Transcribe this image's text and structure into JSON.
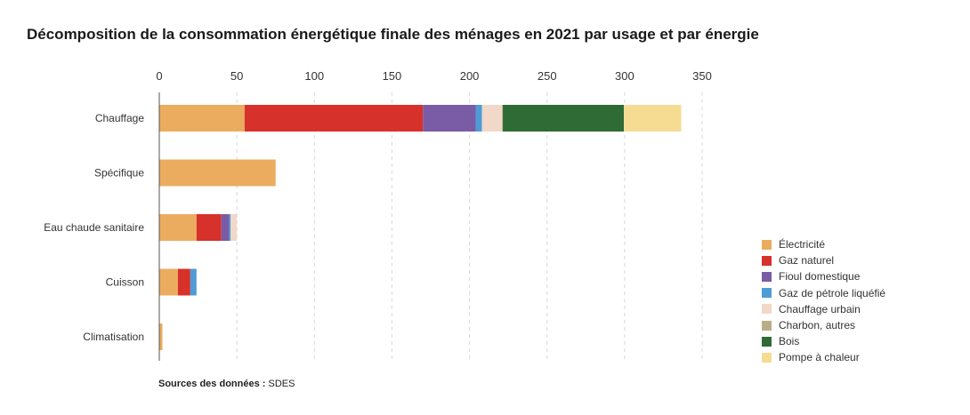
{
  "chart_data": {
    "type": "bar",
    "orientation": "horizontal",
    "stacked": true,
    "title": "Décomposition de la consommation énergétique finale des ménages en 2021 par usage et par énergie",
    "categories": [
      "Chauffage",
      "Spécifique",
      "Eau chaude sanitaire",
      "Cuisson",
      "Climatisation"
    ],
    "xlim": [
      0,
      350
    ],
    "xticks": [
      0,
      50,
      100,
      150,
      200,
      250,
      300,
      350
    ],
    "grid": "vertical dashed",
    "legend_position": "bottom-right",
    "series": [
      {
        "name": "Électricité",
        "color": "#EBAC5F",
        "values": [
          55,
          75,
          24,
          12,
          2
        ]
      },
      {
        "name": "Gaz naturel",
        "color": "#D6312B",
        "values": [
          115,
          0,
          16,
          8,
          0
        ]
      },
      {
        "name": "Fioul domestique",
        "color": "#7A5BA6",
        "values": [
          34,
          0,
          5,
          0,
          0
        ]
      },
      {
        "name": "Gaz de pétrole liquéfié",
        "color": "#4F9BD6",
        "values": [
          4,
          0,
          1,
          4,
          0
        ]
      },
      {
        "name": "Chauffage urbain",
        "color": "#F2D8C8",
        "values": [
          13,
          0,
          4,
          0,
          0
        ]
      },
      {
        "name": "Charbon, autres",
        "color": "#B8AE85",
        "values": [
          0.5,
          0,
          0,
          0,
          0
        ]
      },
      {
        "name": "Bois",
        "color": "#2E6B35",
        "values": [
          78,
          0,
          0,
          0,
          0
        ]
      },
      {
        "name": "Pompe à chaleur",
        "color": "#F5DC92",
        "values": [
          37,
          0,
          0,
          0,
          0
        ]
      }
    ]
  },
  "footer": {
    "source_label": "Sources des données :",
    "source_value": "SDES"
  }
}
